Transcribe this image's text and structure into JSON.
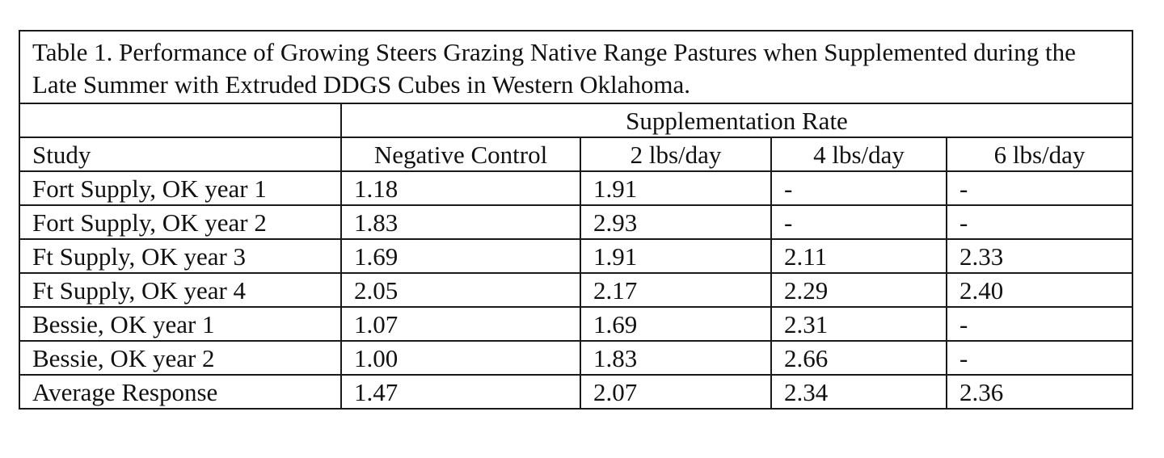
{
  "table": {
    "caption": "Table 1. Performance of Growing Steers Grazing Native Range Pastures when Supplemented during the Late Summer with Extruded DDGS Cubes in Western Oklahoma.",
    "group_header": "Supplementation Rate",
    "columns": [
      "Study",
      "Negative Control",
      "2 lbs/day",
      "4 lbs/day",
      "6 lbs/day"
    ],
    "rows": [
      [
        "Fort Supply, OK year 1",
        "1.18",
        "1.91",
        "-",
        "-"
      ],
      [
        "Fort Supply, OK year 2",
        "1.83",
        "2.93",
        "-",
        "-"
      ],
      [
        "Ft Supply, OK year 3",
        "1.69",
        "1.91",
        "2.11",
        "2.33"
      ],
      [
        "Ft Supply, OK year 4",
        "2.05",
        "2.17",
        "2.29",
        "2.40"
      ],
      [
        "Bessie, OK year 1",
        "1.07",
        "1.69",
        "2.31",
        "-"
      ],
      [
        "Bessie, OK year 2",
        "1.00",
        "1.83",
        "2.66",
        "-"
      ],
      [
        "Average Response",
        "1.47",
        "2.07",
        "2.34",
        "2.36"
      ]
    ]
  }
}
